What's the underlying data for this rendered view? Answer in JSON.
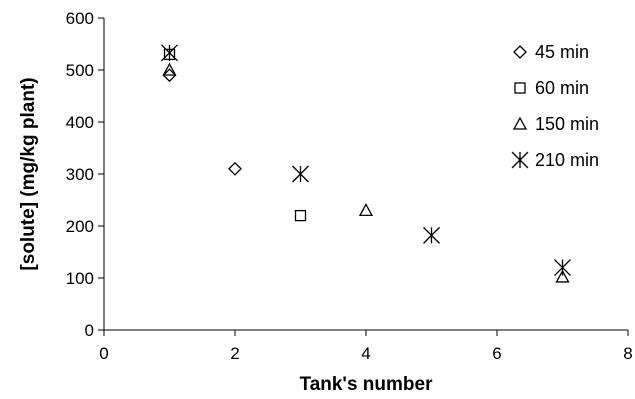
{
  "chart_data": {
    "type": "scatter",
    "title": "",
    "xlabel": "Tank's number",
    "ylabel": "[solute] (mg/kg plant)",
    "xlim": [
      0,
      8
    ],
    "ylim": [
      0,
      600
    ],
    "xticks": [
      0,
      2,
      4,
      6,
      8
    ],
    "yticks": [
      0,
      100,
      200,
      300,
      400,
      500,
      600
    ],
    "grid": false,
    "legend_position": "top-right",
    "series": [
      {
        "name": "45 min",
        "marker": "diamond",
        "points": [
          {
            "x": 1,
            "y": 490
          },
          {
            "x": 2,
            "y": 310
          }
        ]
      },
      {
        "name": "60 min",
        "marker": "square",
        "points": [
          {
            "x": 1,
            "y": 530
          },
          {
            "x": 3,
            "y": 220
          }
        ]
      },
      {
        "name": "150 min",
        "marker": "triangle",
        "points": [
          {
            "x": 1,
            "y": 500
          },
          {
            "x": 4,
            "y": 230
          },
          {
            "x": 7,
            "y": 102
          }
        ]
      },
      {
        "name": "210 min",
        "marker": "asterisk",
        "points": [
          {
            "x": 1,
            "y": 533
          },
          {
            "x": 3,
            "y": 300
          },
          {
            "x": 5,
            "y": 182
          },
          {
            "x": 7,
            "y": 120
          }
        ]
      }
    ]
  }
}
